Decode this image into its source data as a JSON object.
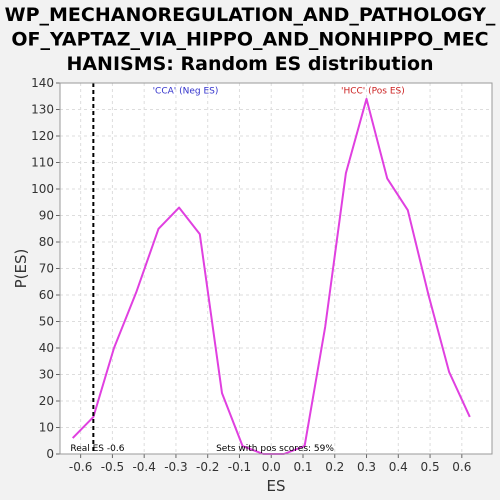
{
  "chart_data": {
    "type": "line",
    "title_lines": [
      "WP_MECHANOREGULATION_AND_PATHOLOGY_",
      "OF_YAPTAZ_VIA_HIPPO_AND_NONHIPPO_MEC",
      "HANISMS: Random ES distribution"
    ],
    "xlabel": "ES",
    "ylabel": "P(ES)",
    "xlim": [
      -0.665,
      0.695
    ],
    "ylim": [
      0,
      140
    ],
    "x_ticks": [
      -0.6,
      -0.5,
      -0.4,
      -0.3,
      -0.2,
      -0.1,
      0.0,
      0.1,
      0.2,
      0.3,
      0.4,
      0.5,
      0.6
    ],
    "x_tick_labels": [
      "-0.6",
      "-0.5",
      "-0.4",
      "-0.3",
      "-0.2",
      "-0.1",
      "0.0",
      "0.1",
      "0.2",
      "0.3",
      "0.4",
      "0.5",
      "0.6"
    ],
    "y_ticks": [
      0,
      10,
      20,
      30,
      40,
      50,
      60,
      70,
      80,
      90,
      100,
      110,
      120,
      130,
      140
    ],
    "y_tick_labels": [
      "0",
      "10",
      "20",
      "30",
      "40",
      "50",
      "60",
      "70",
      "80",
      "90",
      "100",
      "110",
      "120",
      "130",
      "140"
    ],
    "grid": true,
    "series": [
      {
        "color": "#e040e0",
        "x": [
          -0.625,
          -0.56,
          -0.495,
          -0.425,
          -0.355,
          -0.29,
          -0.225,
          -0.155,
          -0.09,
          -0.025,
          0.04,
          0.105,
          0.17,
          0.235,
          0.3,
          0.365,
          0.43,
          0.495,
          0.56,
          0.625
        ],
        "y": [
          6,
          14,
          40,
          61,
          85,
          93,
          83,
          23,
          3,
          0,
          0,
          3,
          48,
          106,
          134,
          104,
          92,
          60,
          31,
          14
        ]
      }
    ],
    "real_es": {
      "x": -0.56,
      "label": "Real ES -0.6",
      "color": "#000000"
    },
    "annotations": [
      {
        "text": "'CCA' (Neg ES)",
        "color": "#3333cc",
        "x": -0.27,
        "y": 136
      },
      {
        "text": "'HCC' (Pos ES)",
        "color": "#cc2222",
        "x": 0.32,
        "y": 136
      }
    ],
    "footer_note": "Sets with pos scores: 59%"
  }
}
